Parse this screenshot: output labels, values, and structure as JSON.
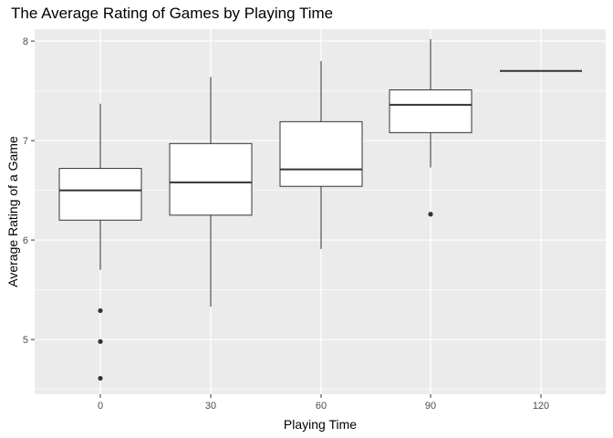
{
  "chart_data": {
    "type": "boxplot",
    "title": "The Average Rating of Games by Playing Time",
    "xlabel": "Playing Time",
    "ylabel": "Average Rating of  a Game",
    "x_ticks": [
      "0",
      "30",
      "60",
      "90",
      "120"
    ],
    "y_ticks": [
      "5",
      "6",
      "7",
      "8"
    ],
    "ylim": [
      4.45,
      8.12
    ],
    "grid": true,
    "legend": "none",
    "panel_color": "#ebebeb",
    "grid_color": "#ffffff",
    "box_fill": "#ffffff",
    "line_color": "#333333",
    "boxes": [
      {
        "category": "0",
        "whisker_low": 5.7,
        "q1": 6.2,
        "median": 6.5,
        "q3": 6.72,
        "whisker_high": 7.37,
        "outliers": [
          5.29,
          4.98,
          4.61
        ]
      },
      {
        "category": "30",
        "whisker_low": 5.33,
        "q1": 6.25,
        "median": 6.58,
        "q3": 6.97,
        "whisker_high": 7.64,
        "outliers": []
      },
      {
        "category": "60",
        "whisker_low": 5.91,
        "q1": 6.54,
        "median": 6.71,
        "q3": 7.19,
        "whisker_high": 7.8,
        "outliers": []
      },
      {
        "category": "90",
        "whisker_low": 6.73,
        "q1": 7.08,
        "median": 7.36,
        "q3": 7.51,
        "whisker_high": 8.02,
        "outliers": [
          6.26
        ]
      },
      {
        "category": "120",
        "whisker_low": 7.7,
        "q1": 7.7,
        "median": 7.7,
        "q3": 7.7,
        "whisker_high": 7.7,
        "outliers": []
      }
    ]
  }
}
